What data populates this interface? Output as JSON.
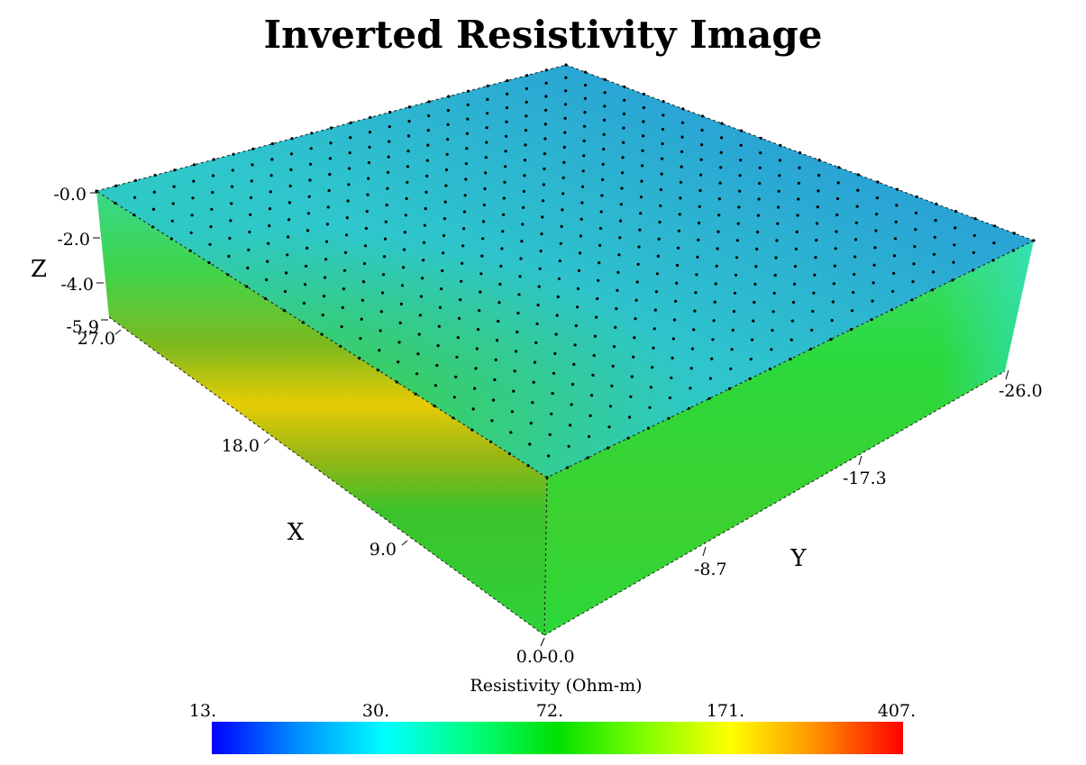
{
  "title": "Inverted Resistivity Image",
  "axes": {
    "z": {
      "label": "Z",
      "ticks": [
        "-0.0",
        "-2.0",
        "-4.0",
        "-5.9"
      ]
    },
    "x": {
      "label": "X",
      "ticks": [
        "27.0",
        "18.0",
        "9.0",
        "0.0"
      ]
    },
    "y": {
      "label": "Y",
      "ticks": [
        "-0.0",
        "-8.7",
        "-17.3",
        "-26.0"
      ]
    }
  },
  "colorbar": {
    "title": "Resistivity (Ohm-m)",
    "ticks": [
      "13.",
      "30.",
      "72.",
      "171.",
      "407."
    ],
    "colors": [
      "#0000ff",
      "#0090ff",
      "#00ffff",
      "#00ff80",
      "#00e000",
      "#80ff00",
      "#ffff00",
      "#ff9000",
      "#ff0000"
    ]
  },
  "colors": {
    "top_face_light": "#2ed6cc",
    "top_face_deep": "#1a8ccf",
    "side_face": "#22d33a",
    "yellow_band": "#e9d800",
    "electrode": "#000000"
  }
}
